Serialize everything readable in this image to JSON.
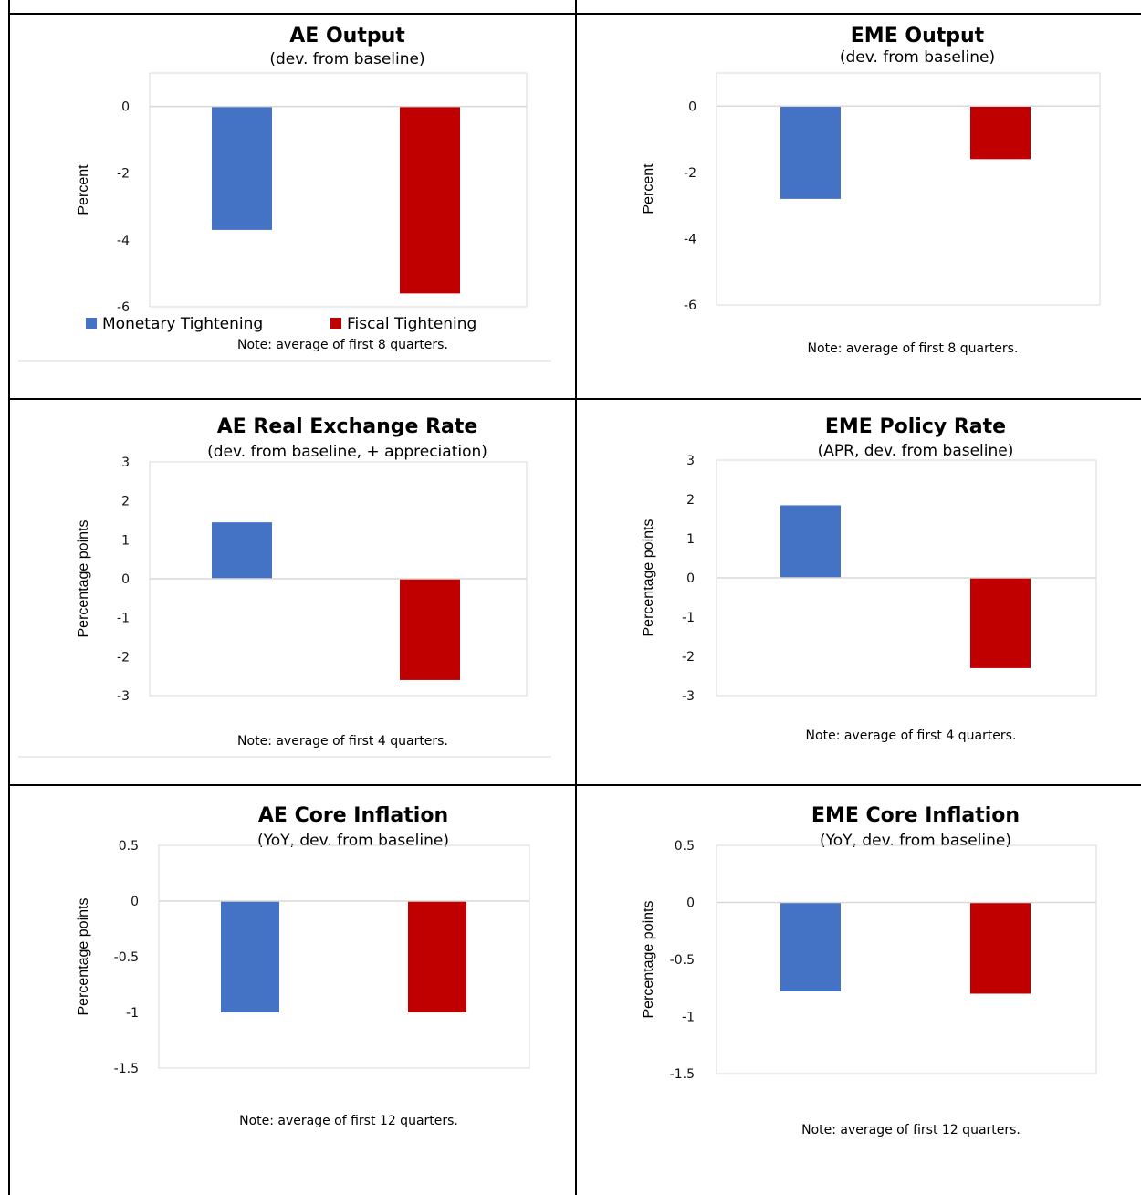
{
  "header": {
    "text": ""
  },
  "colors": {
    "monetary": "#4472C4",
    "fiscal": "#C00000",
    "axis": "#D9D9D9"
  },
  "legend": {
    "monetary": "Monetary Tightening",
    "fiscal": "Fiscal Tightening"
  },
  "chart_data": [
    {
      "type": "bar",
      "title": "AE Output",
      "subtitle": "(dev. from baseline)",
      "ylabel": "Percent",
      "ylim": [
        -6,
        1
      ],
      "yticks": [
        0,
        -2,
        -4,
        -6
      ],
      "ytick_labels": [
        "0",
        "-2",
        "-4",
        "-6"
      ],
      "categories": [
        "Monetary Tightening",
        "Fiscal Tightening"
      ],
      "values": [
        -3.7,
        -5.6
      ],
      "note": "Note: average of first 8 quarters.",
      "legend": "bottom"
    },
    {
      "type": "bar",
      "title": "EME Output",
      "subtitle": "(dev. from baseline)",
      "ylabel": "Percent",
      "ylim": [
        -6,
        1
      ],
      "yticks": [
        0,
        -2,
        -4,
        -6
      ],
      "ytick_labels": [
        "0",
        "-2",
        "-4",
        "-6"
      ],
      "categories": [
        "Monetary Tightening",
        "Fiscal Tightening"
      ],
      "values": [
        -2.8,
        -1.6
      ],
      "note": "Note: average of first 8 quarters."
    },
    {
      "type": "bar",
      "title": "AE Real Exchange Rate",
      "subtitle": "(dev. from baseline, + appreciation)",
      "ylabel": "Percentage points",
      "ylim": [
        -3,
        3
      ],
      "yticks": [
        3,
        2,
        1,
        0,
        -1,
        -2,
        -3
      ],
      "ytick_labels": [
        "3",
        "2",
        "1",
        "0",
        "-1",
        "-2",
        "-3"
      ],
      "categories": [
        "Monetary Tightening",
        "Fiscal Tightening"
      ],
      "values": [
        1.45,
        -2.6
      ],
      "note": "Note: average of first 4 quarters."
    },
    {
      "type": "bar",
      "title": "EME Policy Rate",
      "subtitle": "(APR, dev. from baseline)",
      "ylabel": "Percentage points",
      "ylim": [
        -3,
        3
      ],
      "yticks": [
        3,
        2,
        1,
        0,
        -1,
        -2,
        -3
      ],
      "ytick_labels": [
        "3",
        "2",
        "1",
        "0",
        "-1",
        "-2",
        "-3"
      ],
      "categories": [
        "Monetary Tightening",
        "Fiscal Tightening"
      ],
      "values": [
        1.85,
        -2.3
      ],
      "note": "Note: average of first 4 quarters."
    },
    {
      "type": "bar",
      "title": "AE Core Inflation",
      "subtitle": "(YoY, dev. from baseline)",
      "ylabel": "Percentage points",
      "ylim": [
        -1.5,
        0.5
      ],
      "yticks": [
        0.5,
        0,
        -0.5,
        -1,
        -1.5
      ],
      "ytick_labels": [
        "0.5",
        "0",
        "-0.5",
        "-1",
        "-1.5"
      ],
      "categories": [
        "Monetary Tightening",
        "Fiscal Tightening"
      ],
      "values": [
        -1.0,
        -1.0
      ],
      "note": "Note: average of first 12 quarters."
    },
    {
      "type": "bar",
      "title": "EME Core Inflation",
      "subtitle": "(YoY, dev. from baseline)",
      "ylabel": "Percentage points",
      "ylim": [
        -1.5,
        0.5
      ],
      "yticks": [
        0.5,
        0,
        -0.5,
        -1,
        -1.5
      ],
      "ytick_labels": [
        "0.5",
        "0",
        "-0.5",
        "-1",
        "-1.5"
      ],
      "categories": [
        "Monetary Tightening",
        "Fiscal Tightening"
      ],
      "values": [
        -0.78,
        -0.8
      ],
      "note": "Note: average of first 12 quarters."
    }
  ]
}
